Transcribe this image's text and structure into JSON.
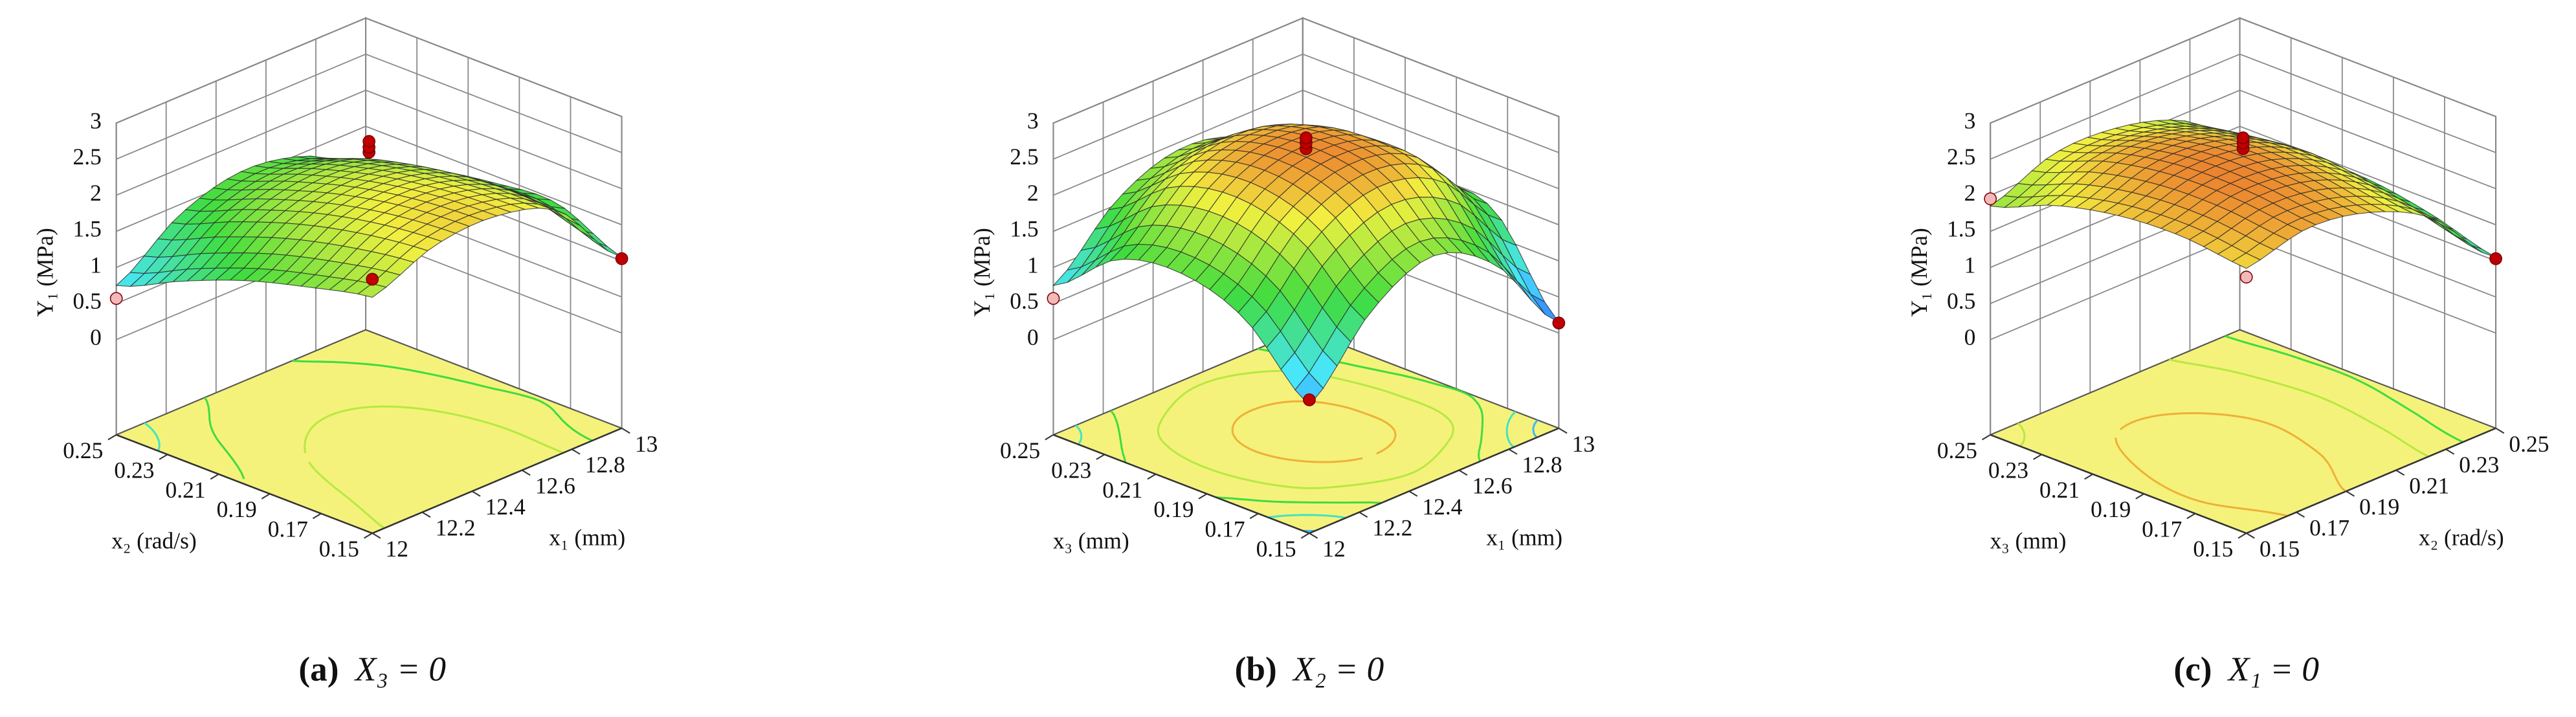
{
  "chart_data": [
    {
      "type": "surface",
      "zlabel": "Y₁ (MPa)",
      "xlabel": "x₁ (mm)",
      "ylabel": "x₂ (rad/s)",
      "xlim": [
        12,
        13
      ],
      "xticks": [
        12,
        12.2,
        12.4,
        12.6,
        12.8,
        13
      ],
      "ylim": [
        0.15,
        0.25
      ],
      "yticks": [
        0.15,
        0.17,
        0.19,
        0.21,
        0.23,
        0.25
      ],
      "zlim": [
        0,
        3
      ],
      "zticks": [
        0,
        0.5,
        1,
        1.5,
        2,
        2.5,
        3
      ],
      "x": [
        12,
        12.25,
        12.5,
        12.75,
        13
      ],
      "y": [
        0.15,
        0.175,
        0.2,
        0.225,
        0.25
      ],
      "z": [
        [
          1.95,
          2.3,
          2.35,
          2.05,
          1.05
        ],
        [
          1.75,
          2.2,
          2.3,
          2.05,
          1.45
        ],
        [
          1.5,
          2.0,
          2.15,
          1.95,
          1.4
        ],
        [
          1.15,
          1.7,
          1.9,
          1.75,
          1.25
        ],
        [
          0.75,
          1.35,
          1.6,
          1.45,
          1.0
        ]
      ],
      "colormap": [
        "#2a55ff",
        "#48e6ff",
        "#3fdc3f",
        "#f2f040",
        "#e63222"
      ],
      "floor_color": "#f5f27c",
      "points": {
        "x": [
          12.5,
          12.5,
          12.5,
          12,
          12,
          13
        ],
        "y": [
          0.2,
          0.2,
          0.2,
          0.15,
          0.25,
          0.15
        ],
        "z": [
          2.55,
          2.62,
          2.7,
          2.2,
          0.57,
          1.03
        ],
        "colors": [
          "#c00000",
          "#c00000",
          "#c00000",
          "#c00000",
          "#f4b8b8",
          "#c00000"
        ]
      },
      "caption_label": "(a)",
      "caption": "X₃ = 0"
    },
    {
      "type": "surface",
      "zlabel": "Y₁ (MPa)",
      "xlabel": "x₁ (mm)",
      "ylabel": "x₃ (mm)",
      "xlim": [
        12,
        13
      ],
      "xticks": [
        12,
        12.2,
        12.4,
        12.6,
        12.8,
        13
      ],
      "ylim": [
        0.15,
        0.25
      ],
      "yticks": [
        0.15,
        0.17,
        0.19,
        0.21,
        0.23,
        0.25
      ],
      "zlim": [
        0,
        3
      ],
      "zticks": [
        0,
        0.5,
        1,
        1.5,
        2,
        2.5,
        3
      ],
      "x": [
        12,
        12.25,
        12.5,
        12.75,
        13
      ],
      "y": [
        0.15,
        0.175,
        0.2,
        0.225,
        0.25
      ],
      "z": [
        [
          0.45,
          1.4,
          1.8,
          1.3,
          0.15
        ],
        [
          1.3,
          2.15,
          2.5,
          2.25,
          1.35
        ],
        [
          1.6,
          2.4,
          2.65,
          2.4,
          1.45
        ],
        [
          1.45,
          2.2,
          2.45,
          2.2,
          1.2
        ],
        [
          0.75,
          1.55,
          1.9,
          1.7,
          0.9
        ]
      ],
      "colormap": [
        "#2a55ff",
        "#48e6ff",
        "#3fdc3f",
        "#f2f040",
        "#e63222"
      ],
      "floor_color": "#f5f27c",
      "points": {
        "x": [
          12.5,
          12.5,
          12.5,
          12,
          12,
          13
        ],
        "y": [
          0.2,
          0.2,
          0.2,
          0.15,
          0.25,
          0.15
        ],
        "z": [
          2.6,
          2.68,
          2.75,
          0.53,
          0.57,
          0.14
        ],
        "colors": [
          "#c00000",
          "#c00000",
          "#c00000",
          "#c00000",
          "#f4b8b8",
          "#c00000"
        ]
      },
      "caption_label": "(b)",
      "caption": "X₂ = 0"
    },
    {
      "type": "surface",
      "zlabel": "Y₁ (MPa)",
      "xlabel": "x₂ (rad/s)",
      "ylabel": "x₃ (mm)",
      "xlim": [
        0.15,
        0.25
      ],
      "xticks": [
        0.15,
        0.17,
        0.19,
        0.21,
        0.23,
        0.25
      ],
      "ylim": [
        0.15,
        0.25
      ],
      "yticks": [
        0.15,
        0.17,
        0.19,
        0.21,
        0.23,
        0.25
      ],
      "zlim": [
        0,
        3
      ],
      "zticks": [
        0,
        0.5,
        1,
        1.5,
        2,
        2.5,
        3
      ],
      "x": [
        0.15,
        0.175,
        0.2,
        0.225,
        0.25
      ],
      "y": [
        0.15,
        0.175,
        0.2,
        0.225,
        0.25
      ],
      "z": [
        [
          2.35,
          2.55,
          2.4,
          1.95,
          1.05
        ],
        [
          2.45,
          2.65,
          2.55,
          2.1,
          1.3
        ],
        [
          2.4,
          2.65,
          2.6,
          2.2,
          1.45
        ],
        [
          2.2,
          2.5,
          2.45,
          2.1,
          1.45
        ],
        [
          1.85,
          2.2,
          2.2,
          1.95,
          1.4
        ]
      ],
      "colormap": [
        "#2a55ff",
        "#48e6ff",
        "#3fdc3f",
        "#f2f040",
        "#e63222"
      ],
      "floor_color": "#f5f27c",
      "points": {
        "x": [
          0.2,
          0.2,
          0.2,
          0.15,
          0.15,
          0.25
        ],
        "y": [
          0.2,
          0.2,
          0.2,
          0.15,
          0.25,
          0.15
        ],
        "z": [
          2.6,
          2.68,
          2.75,
          2.23,
          1.95,
          1.03
        ],
        "colors": [
          "#c00000",
          "#c00000",
          "#c00000",
          "#f4b8b8",
          "#f4b8b8",
          "#c00000"
        ]
      },
      "caption_label": "(c)",
      "caption": "X₁ = 0"
    }
  ]
}
